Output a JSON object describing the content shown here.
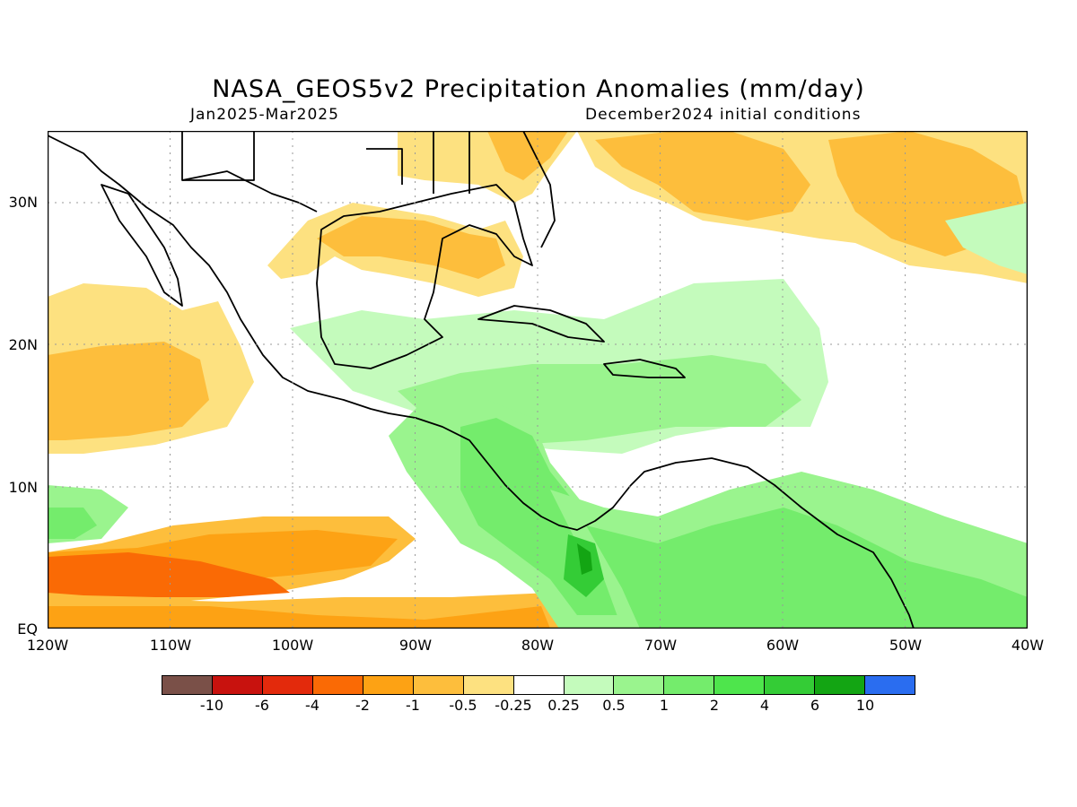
{
  "header": {
    "title": "NASA_GEOS5v2 Precipitation Anomalies (mm/day)",
    "period": "Jan2025-Mar2025",
    "initial_conditions": "December2024 initial conditions"
  },
  "map": {
    "lat_labels": [
      "30N",
      "20N",
      "10N",
      "EQ"
    ],
    "lon_labels": [
      "120W",
      "110W",
      "100W",
      "90W",
      "80W",
      "70W",
      "60W",
      "50W",
      "40W"
    ],
    "grid": true
  },
  "colorbar": {
    "colors": [
      "#7a5048",
      "#c8120e",
      "#e32a0c",
      "#fa6a05",
      "#fda214",
      "#fdbe3c",
      "#fde180",
      "#ffffff",
      "#c4fbbc",
      "#9af48e",
      "#74ec6c",
      "#4ee54c",
      "#34cc36",
      "#13a513",
      "#2a6df0"
    ],
    "labels": [
      "-10",
      "-6",
      "-4",
      "-2",
      "-1",
      "-0.5",
      "-0.25",
      "0.25",
      "0.5",
      "1",
      "2",
      "4",
      "6",
      "10"
    ]
  }
}
